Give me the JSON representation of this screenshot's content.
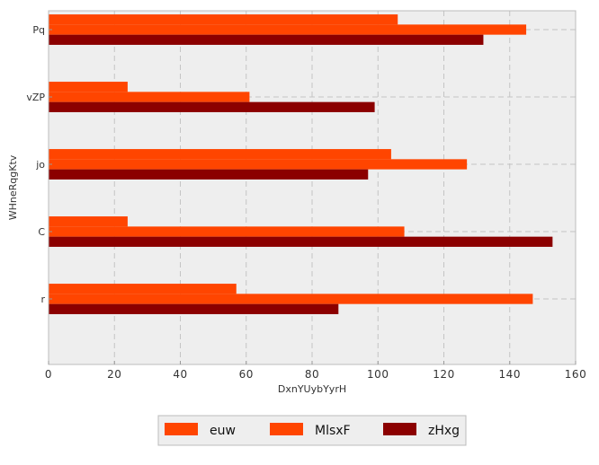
{
  "chart_data": {
    "type": "bar",
    "orientation": "horizontal",
    "categories": [
      "Pq",
      "vZP",
      "jo",
      "C",
      "r"
    ],
    "series": [
      {
        "name": "euw",
        "values": [
          106,
          24,
          104,
          24,
          57
        ],
        "color": "#ff4500"
      },
      {
        "name": "MlsxF",
        "values": [
          145,
          61,
          127,
          108,
          147
        ],
        "color": "#ff4500"
      },
      {
        "name": "zHxg",
        "values": [
          132,
          99,
          97,
          153,
          88
        ],
        "color": "#8b0000"
      }
    ],
    "xlabel": "DxnYUybYyrH",
    "ylabel": "WHneRqgKtv",
    "xlim": [
      0,
      160
    ],
    "xticks": [
      0,
      20,
      40,
      60,
      80,
      100,
      120,
      140,
      160
    ],
    "grid": true,
    "legend_position": "bottom-center"
  }
}
